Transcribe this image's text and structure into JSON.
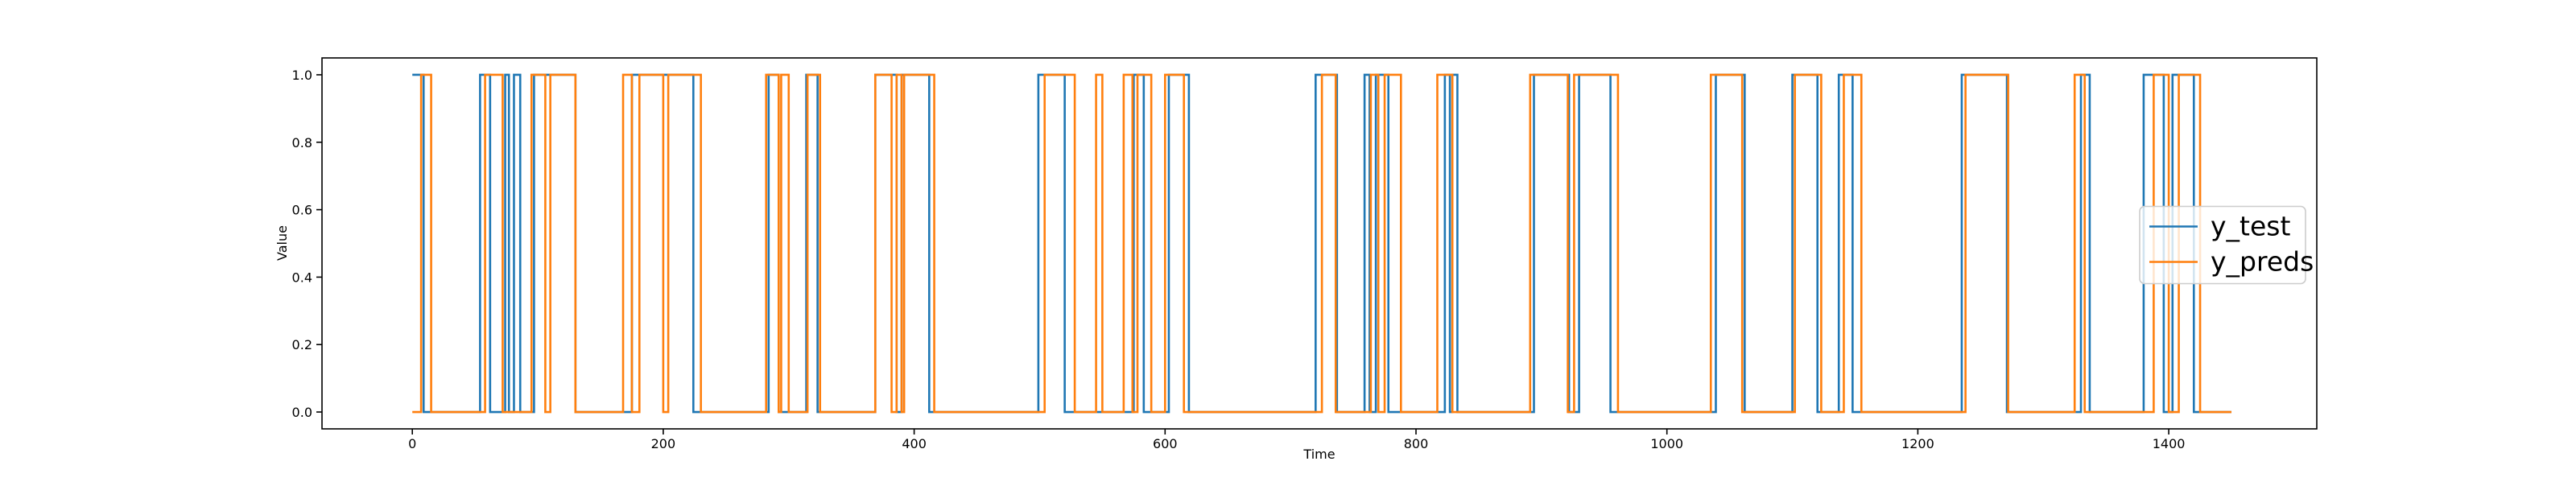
{
  "chart_data": {
    "type": "line",
    "drawstyle": "steps-post",
    "xlabel": "Time",
    "ylabel": "Value",
    "xlim": [
      -72,
      1518
    ],
    "ylim": [
      -0.05,
      1.05
    ],
    "xticks": [
      0,
      200,
      400,
      600,
      800,
      1000,
      1200,
      1400
    ],
    "yticks": [
      {
        "value": 0,
        "label": "0.0"
      },
      {
        "value": 0.2,
        "label": "0.2"
      },
      {
        "value": 0.4,
        "label": "0.4"
      },
      {
        "value": 0.6,
        "label": "0.6"
      },
      {
        "value": 0.8,
        "label": "0.8"
      },
      {
        "value": 1,
        "label": "1.0"
      }
    ],
    "legend": "center right",
    "series": [
      {
        "name": "y_test",
        "color": "#1f77b4",
        "x": [
          0,
          9,
          54,
          62,
          74,
          77,
          81,
          86,
          97,
          130,
          175,
          224,
          284,
          292,
          314,
          323,
          369,
          386,
          390,
          412,
          499,
          520,
          575,
          583,
          603,
          619,
          720,
          737,
          759,
          763,
          768,
          778,
          823,
          827,
          829,
          833,
          894,
          922,
          930,
          955,
          1039,
          1062,
          1100,
          1120,
          1137,
          1148,
          1235,
          1271,
          1330,
          1337,
          1380,
          1396,
          1403,
          1420,
          1450
        ],
        "values": [
          1,
          0,
          1,
          0,
          1,
          0,
          1,
          0,
          1,
          0,
          1,
          0,
          1,
          0,
          1,
          0,
          1,
          0,
          1,
          0,
          1,
          0,
          1,
          0,
          1,
          0,
          1,
          0,
          1,
          0,
          1,
          0,
          1,
          0,
          1,
          0,
          1,
          0,
          1,
          0,
          1,
          0,
          1,
          0,
          1,
          0,
          1,
          0,
          1,
          0,
          1,
          0,
          1,
          0,
          0
        ]
      },
      {
        "name": "y_preds",
        "color": "#ff7f0e",
        "x": [
          0,
          7,
          15,
          58,
          72,
          95,
          106,
          110,
          130,
          168,
          175,
          181,
          200,
          204,
          230,
          282,
          292,
          294,
          300,
          315,
          325,
          369,
          382,
          386,
          390,
          392,
          416,
          504,
          528,
          545,
          550,
          567,
          574,
          578,
          589,
          600,
          615,
          725,
          736,
          764,
          770,
          775,
          788,
          817,
          829,
          891,
          921,
          926,
          961,
          1035,
          1060,
          1102,
          1123,
          1141,
          1155,
          1238,
          1272,
          1325,
          1333,
          1388,
          1400,
          1408,
          1425,
          1450
        ],
        "values": [
          0,
          1,
          0,
          1,
          0,
          1,
          0,
          1,
          0,
          1,
          0,
          1,
          0,
          1,
          0,
          1,
          0,
          1,
          0,
          1,
          0,
          1,
          0,
          1,
          0,
          1,
          0,
          1,
          0,
          1,
          0,
          1,
          0,
          1,
          0,
          1,
          0,
          1,
          0,
          1,
          0,
          1,
          0,
          1,
          0,
          1,
          0,
          1,
          0,
          1,
          0,
          1,
          0,
          1,
          0,
          1,
          0,
          1,
          0,
          1,
          0,
          1,
          0,
          0
        ]
      }
    ]
  }
}
